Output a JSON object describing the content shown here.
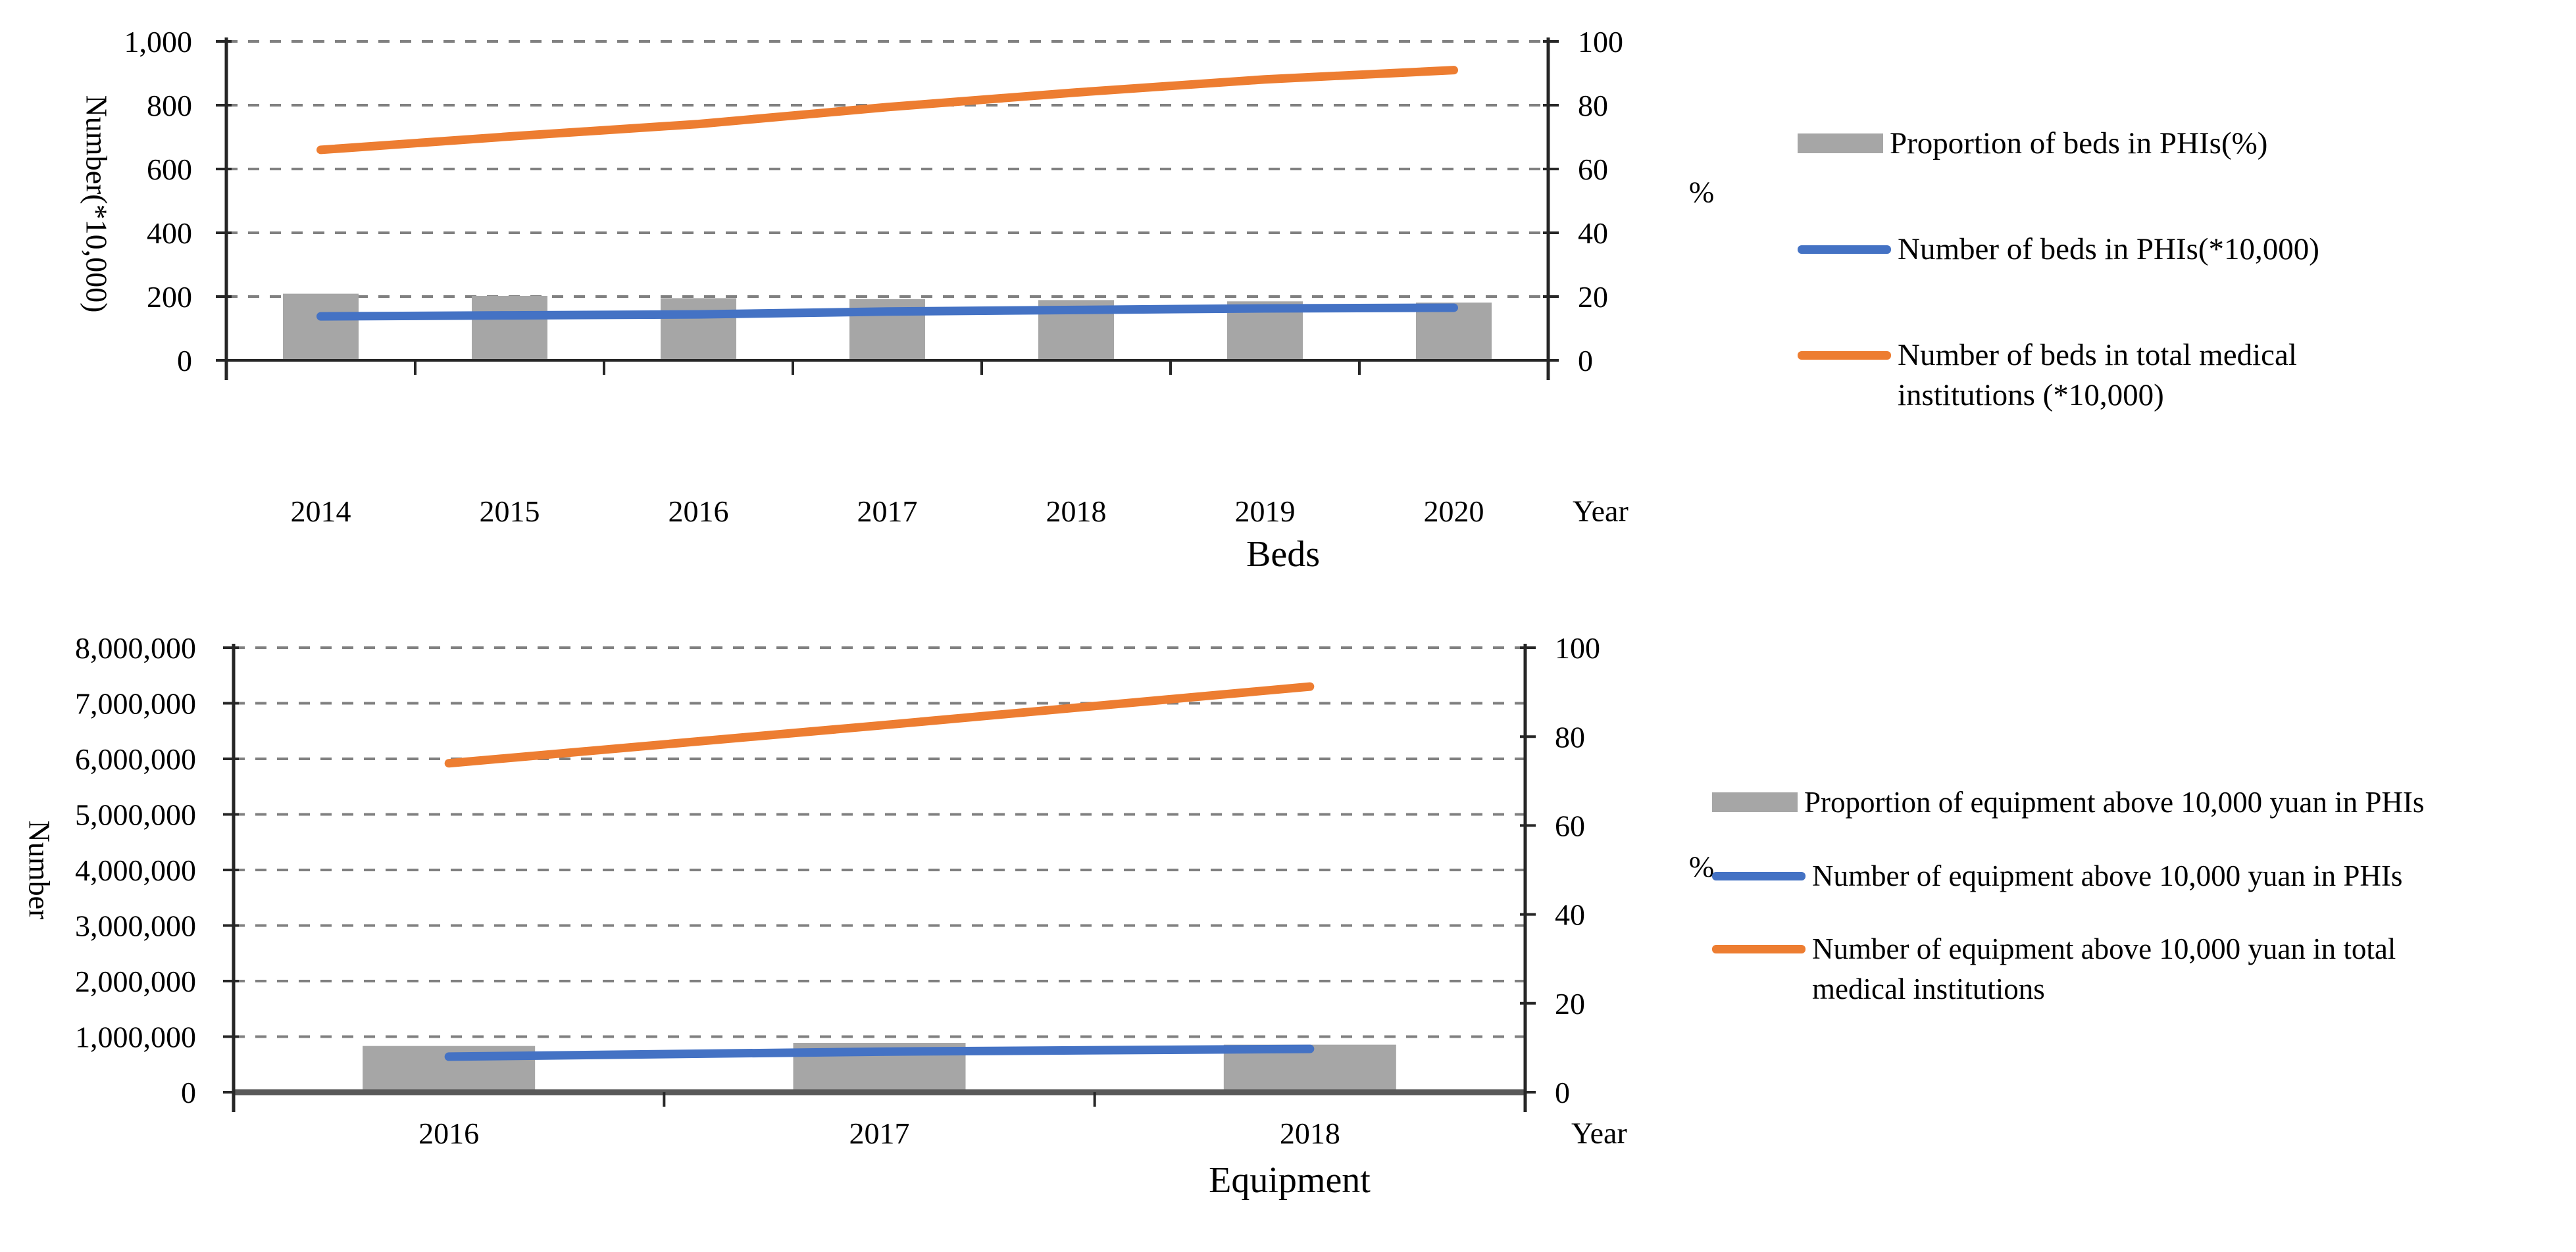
{
  "colors": {
    "gray": "#a6a6a6",
    "blue": "#4472c4",
    "orange": "#ed7d31",
    "grid": "#808080",
    "axis": "#262626",
    "baseline_equipment": "#595959",
    "text": "#000000",
    "background": "#ffffff"
  },
  "chart_data": [
    {
      "id": "beds",
      "type": "bar",
      "subtype": "combo-bar-line-dual-axis",
      "title": "Beds",
      "x_axis_label": "Year",
      "y_left_label": "Number(*10,000)",
      "y_right_label": "%",
      "grid": "dashed-horizontal",
      "legend_position": "right",
      "categories": [
        "2014",
        "2015",
        "2016",
        "2017",
        "2018",
        "2019",
        "2020"
      ],
      "y_left": {
        "min": 0,
        "max": 1000,
        "step": 200,
        "ticks": [
          "0",
          "200",
          "400",
          "600",
          "800",
          "1,000"
        ]
      },
      "y_right": {
        "min": 0,
        "max": 100,
        "step": 20,
        "ticks": [
          "0",
          "20",
          "40",
          "60",
          "80",
          "100"
        ]
      },
      "series": [
        {
          "name": "Proportion of beds in PHIs(%)",
          "type": "bar",
          "axis": "right",
          "color_key": "gray",
          "values": [
            20.9,
            20.2,
            19.5,
            19.2,
            18.9,
            18.5,
            18.1
          ]
        },
        {
          "name": "Number of beds in PHIs(*10,000)",
          "type": "line",
          "axis": "left",
          "color_key": "blue",
          "values": [
            138,
            141,
            144,
            153,
            158,
            163,
            165
          ]
        },
        {
          "name": "Number of beds in total medical institutions (*10,000)",
          "type": "line",
          "axis": "left",
          "color_key": "orange",
          "values": [
            660,
            702,
            741,
            794,
            840,
            881,
            910
          ]
        }
      ]
    },
    {
      "id": "equipment",
      "type": "bar",
      "subtype": "combo-bar-line-dual-axis",
      "title": "Equipment",
      "x_axis_label": "Year",
      "y_left_label": "Number",
      "y_right_label": "%",
      "grid": "dashed-horizontal",
      "legend_position": "right",
      "categories": [
        "2016",
        "2017",
        "2018"
      ],
      "y_left": {
        "min": 0,
        "max": 8000000,
        "step": 1000000,
        "ticks": [
          "0",
          "1,000,000",
          "2,000,000",
          "3,000,000",
          "4,000,000",
          "5,000,000",
          "6,000,000",
          "7,000,000",
          "8,000,000"
        ]
      },
      "y_right": {
        "min": 0,
        "max": 100,
        "step": 20,
        "ticks": [
          "0",
          "20",
          "40",
          "60",
          "80",
          "100"
        ]
      },
      "series": [
        {
          "name": "Proportion of equipment above 10,000 yuan in PHIs",
          "type": "bar",
          "axis": "right",
          "color_key": "gray",
          "values": [
            10.4,
            11.1,
            10.7
          ]
        },
        {
          "name": "Number of equipment above 10,000 yuan in PHIs",
          "type": "line",
          "axis": "left",
          "color_key": "blue",
          "values": [
            640000,
            730000,
            780000
          ]
        },
        {
          "name": "Number of equipment above 10,000 yuan in total medical institutions",
          "type": "line",
          "axis": "left",
          "color_key": "orange",
          "values": [
            5920000,
            6600000,
            7300000
          ]
        }
      ]
    }
  ]
}
